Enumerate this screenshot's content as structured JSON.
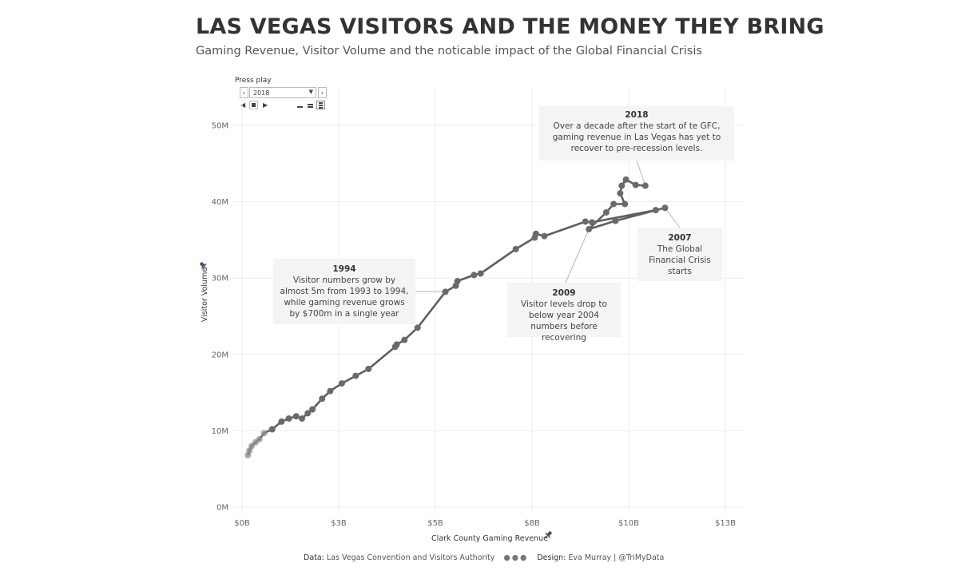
{
  "header": {
    "title": "LAS VEGAS VISITORS AND THE MONEY THEY BRING",
    "subtitle": "Gaming Revenue, Visitor Volume and the noticable impact of the Global Financial Crisis"
  },
  "play_control": {
    "label": "Press play",
    "selected_year": "2018"
  },
  "annotations": {
    "a2018": {
      "year": "2018",
      "text": "Over a decade after the start of te GFC, gaming revenue in Las Vegas has yet to recover to pre-recession levels."
    },
    "a1994": {
      "year": "1994",
      "text": "Visitor numbers grow by almost 5m from 1993 to 1994, while gaming revenue grows by $700m in a single year"
    },
    "a2009": {
      "year": "2009",
      "text": "Visitor levels drop to below year 2004 numbers before recovering"
    },
    "a2007": {
      "year": "2007",
      "text": "The Global Financial Crisis starts"
    }
  },
  "footer": {
    "data_label": "Data:",
    "data_source": "Las Vegas Convention and Visitors Authority",
    "separator": "●●●",
    "design_label": "Design:",
    "design_credit": "Eva Murray | @TriMyData"
  },
  "colors": {
    "line": "#5f5f5f",
    "point": "#6a6a6a",
    "grid": "#ececec",
    "annotation_bg": "#f4f4f4"
  },
  "chart_data": {
    "type": "line",
    "xlabel": "Clark County Gaming Revenue",
    "ylabel": "Visitor Volume",
    "x_unit": "billion USD",
    "y_unit": "million visitors",
    "xlim": [
      0,
      13
    ],
    "ylim": [
      0,
      50
    ],
    "x_ticks": [
      {
        "value": 0,
        "label": "$0B"
      },
      {
        "value": 2.5,
        "label": "$3B"
      },
      {
        "value": 5.0,
        "label": "$5B"
      },
      {
        "value": 7.5,
        "label": "$8B"
      },
      {
        "value": 10.0,
        "label": "$10B"
      },
      {
        "value": 12.5,
        "label": "$13B"
      }
    ],
    "y_ticks": [
      {
        "value": 0,
        "label": "0M"
      },
      {
        "value": 10,
        "label": "10M"
      },
      {
        "value": 20,
        "label": "20M"
      },
      {
        "value": 30,
        "label": "30M"
      },
      {
        "value": 40,
        "label": "40M"
      },
      {
        "value": 50,
        "label": "50M"
      }
    ],
    "grid": true,
    "series": [
      {
        "values": [
          {
            "x": 0.15,
            "y": 6.8
          },
          {
            "x": 0.19,
            "y": 7.4
          },
          {
            "x": 0.25,
            "y": 8.0
          },
          {
            "x": 0.35,
            "y": 8.5
          },
          {
            "x": 0.45,
            "y": 8.9
          },
          {
            "x": 0.57,
            "y": 9.7
          },
          {
            "x": 0.78,
            "y": 10.2
          },
          {
            "x": 1.02,
            "y": 11.2
          },
          {
            "x": 1.21,
            "y": 11.6
          },
          {
            "x": 1.4,
            "y": 11.9
          },
          {
            "x": 1.55,
            "y": 11.6
          },
          {
            "x": 1.7,
            "y": 12.3
          },
          {
            "x": 1.82,
            "y": 12.8
          },
          {
            "x": 2.07,
            "y": 14.2
          },
          {
            "x": 2.28,
            "y": 15.2
          },
          {
            "x": 2.58,
            "y": 16.2
          },
          {
            "x": 2.94,
            "y": 17.2
          },
          {
            "x": 3.27,
            "y": 18.1
          },
          {
            "x": 3.96,
            "y": 21.0
          },
          {
            "x": 4.0,
            "y": 21.3
          },
          {
            "x": 4.2,
            "y": 21.9
          },
          {
            "x": 4.54,
            "y": 23.5
          },
          {
            "x": 5.26,
            "y": 28.2
          },
          {
            "x": 5.53,
            "y": 29.0
          },
          {
            "x": 5.57,
            "y": 29.6
          },
          {
            "x": 6.0,
            "y": 30.4
          },
          {
            "x": 6.17,
            "y": 30.6
          },
          {
            "x": 7.08,
            "y": 33.8
          },
          {
            "x": 7.57,
            "y": 35.3
          },
          {
            "x": 7.6,
            "y": 35.8
          },
          {
            "x": 7.82,
            "y": 35.5
          },
          {
            "x": 8.88,
            "y": 37.4
          },
          {
            "x": 9.05,
            "y": 37.3
          },
          {
            "x": 10.7,
            "y": 38.9
          },
          {
            "x": 10.94,
            "y": 39.2
          },
          {
            "x": 9.66,
            "y": 37.5
          },
          {
            "x": 8.97,
            "y": 36.4
          },
          {
            "x": 9.42,
            "y": 38.6
          },
          {
            "x": 9.61,
            "y": 39.7
          },
          {
            "x": 9.9,
            "y": 39.7
          },
          {
            "x": 9.78,
            "y": 41.1
          },
          {
            "x": 9.82,
            "y": 42.1
          },
          {
            "x": 9.93,
            "y": 42.9
          },
          {
            "x": 10.18,
            "y": 42.2
          },
          {
            "x": 10.43,
            "y": 42.1
          }
        ]
      }
    ]
  }
}
